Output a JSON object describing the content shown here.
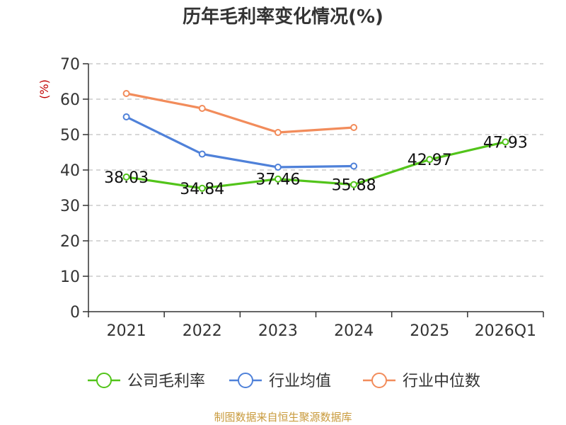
{
  "chart_data": {
    "type": "line",
    "title": "历年毛利率变化情况(%)",
    "ylabel": "(%)",
    "xlabel": "",
    "categories": [
      "2021",
      "2022",
      "2023",
      "2024",
      "2025",
      "2026Q1"
    ],
    "ylim": [
      0,
      70
    ],
    "yticks": [
      0,
      10,
      20,
      30,
      40,
      50,
      60,
      70
    ],
    "grid": true,
    "legend_position": "bottom",
    "series": [
      {
        "name": "公司毛利率",
        "color": "#52c41a",
        "values": [
          38.03,
          34.84,
          37.46,
          35.88,
          42.97,
          47.93
        ],
        "labels": [
          "38.03",
          "34.84",
          "37.46",
          "35.88",
          "42.97",
          "47.93"
        ]
      },
      {
        "name": "行业均值",
        "color": "#4f81d9",
        "values": [
          55.0,
          44.5,
          40.8,
          41.1,
          null,
          null
        ]
      },
      {
        "name": "行业中位数",
        "color": "#f28c5b",
        "values": [
          61.6,
          57.4,
          50.6,
          52.0,
          null,
          null
        ]
      }
    ]
  },
  "source": "制图数据来自恒生聚源数据库"
}
